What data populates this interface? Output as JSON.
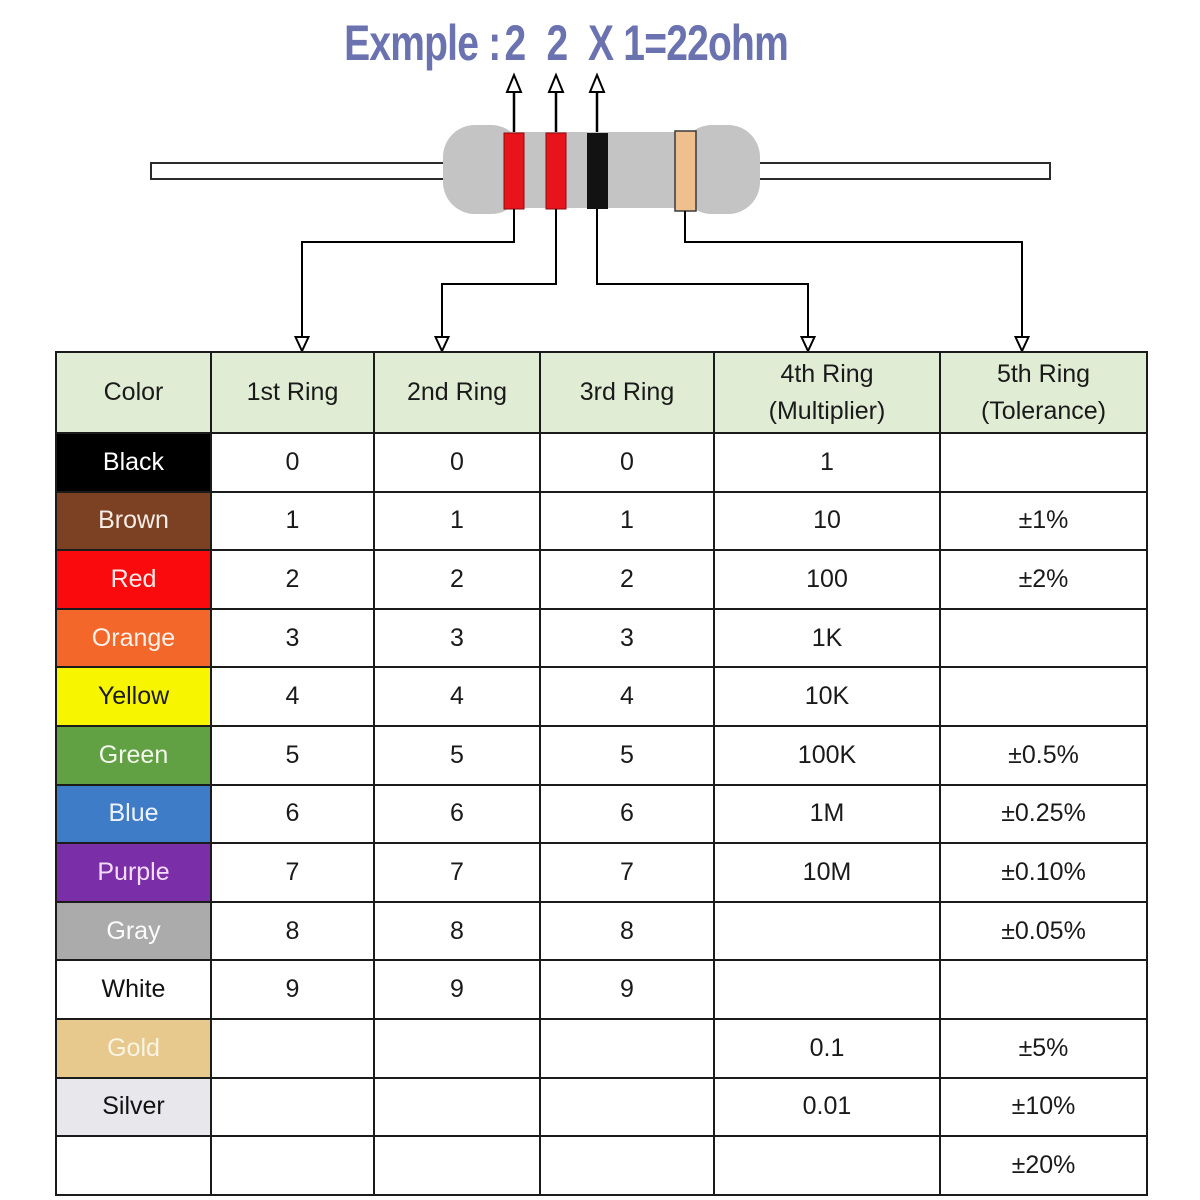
{
  "title": {
    "prefix": "Exmple :",
    "digit1": "2",
    "digit2": "2",
    "suffix": "X 1=22ohm",
    "color": "#6b72b0"
  },
  "resistor": {
    "body_color": "#c4c4c4",
    "lead_color": "#ffffff",
    "bands": [
      {
        "name": "red-band-1",
        "color": "#e8141b"
      },
      {
        "name": "red-band-2",
        "color": "#e8141b"
      },
      {
        "name": "black-band",
        "color": "#121212"
      },
      {
        "name": "gold-band",
        "color": "#efc08e"
      }
    ]
  },
  "table": {
    "header_bg": "#e1ecd5",
    "headers": [
      "Color",
      "1st Ring",
      "2nd Ring",
      "3rd Ring",
      "4th Ring\n(Multiplier)",
      "5th Ring\n(Tolerance)"
    ],
    "rows": [
      {
        "color": "Black",
        "bg": "#000000",
        "fg": "#ffffff",
        "ring1": "0",
        "ring2": "0",
        "ring3": "0",
        "multiplier": "1",
        "tolerance": ""
      },
      {
        "color": "Brown",
        "bg": "#7b4122",
        "fg": "#f7ece6",
        "ring1": "1",
        "ring2": "1",
        "ring3": "1",
        "multiplier": "10",
        "tolerance": "±1%"
      },
      {
        "color": "Red",
        "bg": "#fa0a0c",
        "fg": "#fdeaea",
        "ring1": "2",
        "ring2": "2",
        "ring3": "2",
        "multiplier": "100",
        "tolerance": "±2%"
      },
      {
        "color": "Orange",
        "bg": "#f3672b",
        "fg": "#fef3ec",
        "ring1": "3",
        "ring2": "3",
        "ring3": "3",
        "multiplier": "1K",
        "tolerance": ""
      },
      {
        "color": "Yellow",
        "bg": "#f8f501",
        "fg": "#1a1a1a",
        "ring1": "4",
        "ring2": "4",
        "ring3": "4",
        "multiplier": "10K",
        "tolerance": ""
      },
      {
        "color": "Green",
        "bg": "#61a144",
        "fg": "#f2f8ec",
        "ring1": "5",
        "ring2": "5",
        "ring3": "5",
        "multiplier": "100K",
        "tolerance": "±0.5%"
      },
      {
        "color": "Blue",
        "bg": "#3e7cc7",
        "fg": "#eef3fb",
        "ring1": "6",
        "ring2": "6",
        "ring3": "6",
        "multiplier": "1M",
        "tolerance": "±0.25%"
      },
      {
        "color": "Purple",
        "bg": "#7a2fa8",
        "fg": "#f3dcf8",
        "ring1": "7",
        "ring2": "7",
        "ring3": "7",
        "multiplier": "10M",
        "tolerance": "±0.10%"
      },
      {
        "color": "Gray",
        "bg": "#ababab",
        "fg": "#fbfbfb",
        "ring1": "8",
        "ring2": "8",
        "ring3": "8",
        "multiplier": "",
        "tolerance": "±0.05%"
      },
      {
        "color": "White",
        "bg": "#ffffff",
        "fg": "#111111",
        "ring1": "9",
        "ring2": "9",
        "ring3": "9",
        "multiplier": "",
        "tolerance": ""
      },
      {
        "color": "Gold",
        "bg": "#e7c98e",
        "fg": "#faf4e4",
        "ring1": "",
        "ring2": "",
        "ring3": "",
        "multiplier": "0.1",
        "tolerance": "±5%"
      },
      {
        "color": "Silver",
        "bg": "#e7e7ec",
        "fg": "#111111",
        "ring1": "",
        "ring2": "",
        "ring3": "",
        "multiplier": "0.01",
        "tolerance": "±10%"
      },
      {
        "color": "",
        "bg": "#ffffff",
        "fg": "#111111",
        "ring1": "",
        "ring2": "",
        "ring3": "",
        "multiplier": "",
        "tolerance": "±20%"
      }
    ]
  }
}
